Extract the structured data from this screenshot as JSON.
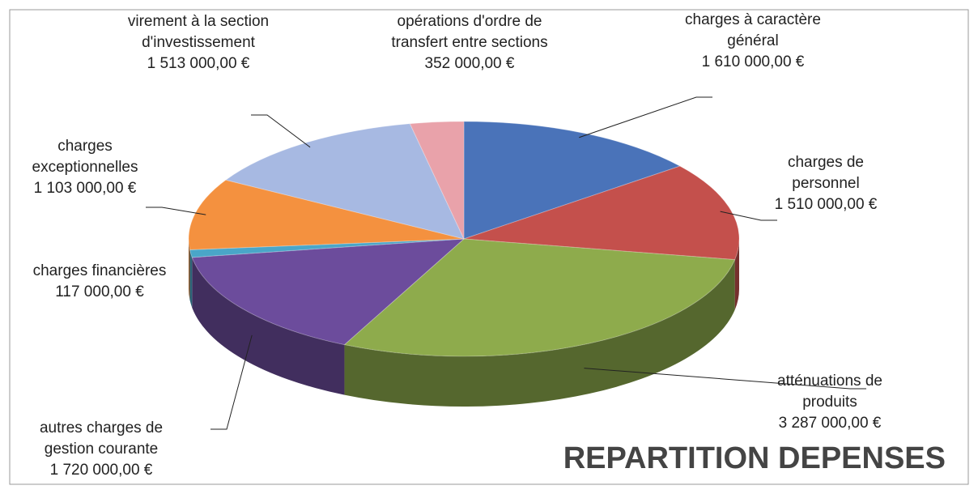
{
  "chart_data": {
    "type": "pie",
    "title": "REPARTITION DEPENSES",
    "categories": [
      "charges à caractère général",
      "charges de personnel",
      "atténuations de produits",
      "autres charges de gestion courante",
      "charges financières",
      "charges exceptionnelles",
      "virement à la section d'investissement",
      "opérations d'ordre de transfert entre sections"
    ],
    "values": [
      1610000,
      1510000,
      3287000,
      1720000,
      117000,
      1103000,
      1513000,
      352000
    ],
    "value_labels": [
      "1 610 000,00 €",
      "1 510 000,00 €",
      "3 287 000,00 €",
      "1 720 000,00 €",
      "117 000,00 €",
      "1 103 000,00 €",
      "1 513 000,00 €",
      "352 000,00 €"
    ],
    "colors": [
      "#4a73b9",
      "#c4504c",
      "#8eab4c",
      "#6c4c9c",
      "#4aa6c8",
      "#f4913f",
      "#a7b9e2",
      "#e9a2aa"
    ]
  }
}
